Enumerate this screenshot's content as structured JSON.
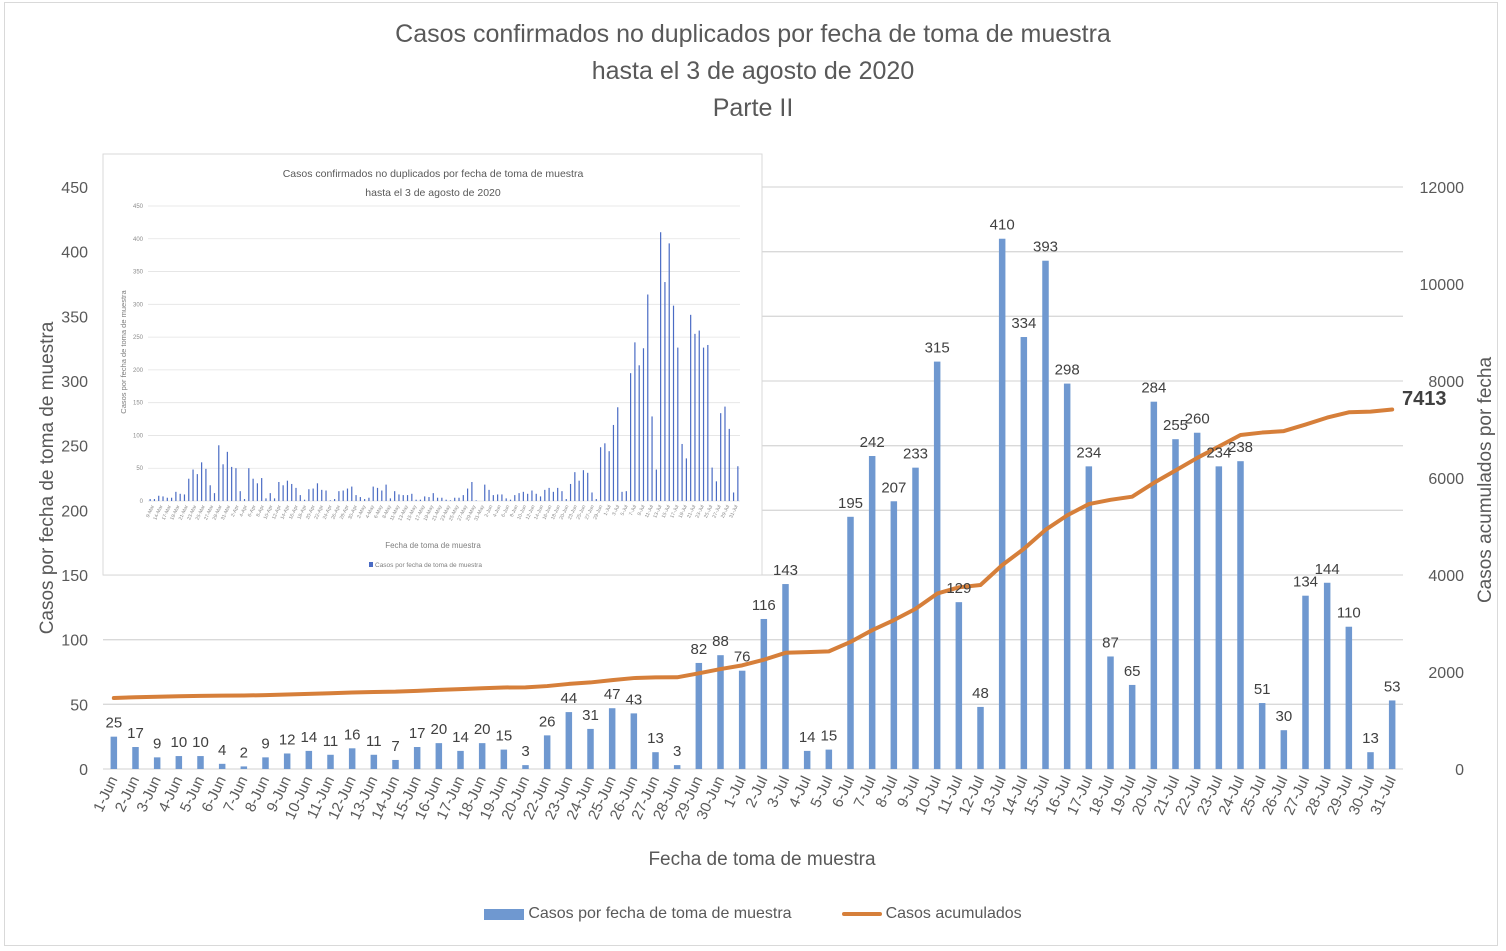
{
  "chart_data": {
    "type": "bar",
    "title": [
      "Casos confirmados no duplicados por fecha de toma de muestra",
      "hasta el 3 de agosto de 2020",
      "Parte II"
    ],
    "xlabel": "Fecha de toma de muestra",
    "ylabel": "Casos por fecha de toma de muestra",
    "y2label": "Casos acumulados por fecha",
    "ylim": [
      0,
      450
    ],
    "yticks": [
      0,
      50,
      100,
      150,
      200,
      250,
      300,
      350,
      400,
      450
    ],
    "y2lim": [
      0,
      12000
    ],
    "y2ticks": [
      0,
      2000,
      4000,
      6000,
      8000,
      10000,
      12000
    ],
    "grid": true,
    "legend_position": "bottom",
    "categories": [
      "1-Jun",
      "2-Jun",
      "3-Jun",
      "4-Jun",
      "5-Jun",
      "6-Jun",
      "7-Jun",
      "8-Jun",
      "9-Jun",
      "10-Jun",
      "11-Jun",
      "12-Jun",
      "13-Jun",
      "14-Jun",
      "15-Jun",
      "16-Jun",
      "17-Jun",
      "18-Jun",
      "19-Jun",
      "20-Jun",
      "22-Jun",
      "23-Jun",
      "24-Jun",
      "25-Jun",
      "26-Jun",
      "27-Jun",
      "28-Jun",
      "29-Jun",
      "30-Jun",
      "1-Jul",
      "2-Jul",
      "3-Jul",
      "4-Jul",
      "5-Jul",
      "6-Jul",
      "7-Jul",
      "8-Jul",
      "9-Jul",
      "10-Jul",
      "11-Jul",
      "12-Jul",
      "13-Jul",
      "14-Jul",
      "15-Jul",
      "16-Jul",
      "17-Jul",
      "18-Jul",
      "19-Jul",
      "20-Jul",
      "21-Jul",
      "22-Jul",
      "23-Jul",
      "24-Jul",
      "25-Jul",
      "26-Jul",
      "27-Jul",
      "28-Jul",
      "29-Jul",
      "30-Jul",
      "31-Jul"
    ],
    "series": [
      {
        "name": "Casos por fecha de toma de muestra",
        "type": "bar",
        "axis": "left",
        "color": "#6f98d0",
        "values": [
          25,
          17,
          9,
          10,
          10,
          4,
          2,
          9,
          12,
          14,
          11,
          16,
          11,
          7,
          17,
          20,
          14,
          20,
          15,
          3,
          26,
          44,
          31,
          47,
          43,
          13,
          3,
          82,
          88,
          76,
          116,
          143,
          14,
          15,
          195,
          242,
          207,
          233,
          315,
          129,
          48,
          410,
          334,
          393,
          298,
          234,
          87,
          65,
          284,
          255,
          260,
          234,
          238,
          51,
          30,
          134,
          144,
          110,
          13,
          53
        ]
      },
      {
        "name": "Casos acumulados",
        "type": "line",
        "axis": "right",
        "color": "#d67f3a",
        "final_value": 7413,
        "values": [
          1463,
          1480,
          1489,
          1499,
          1509,
          1513,
          1515,
          1524,
          1536,
          1550,
          1561,
          1577,
          1588,
          1595,
          1612,
          1632,
          1646,
          1666,
          1681,
          1684,
          1710,
          1754,
          1785,
          1832,
          1875,
          1888,
          1891,
          1973,
          2061,
          2137,
          2253,
          2396,
          2410,
          2425,
          2620,
          2862,
          3069,
          3302,
          3617,
          3746,
          3794,
          4204,
          4538,
          4931,
          5229,
          5463,
          5550,
          5615,
          5899,
          6154,
          6414,
          6648,
          6886,
          6937,
          6967,
          7101,
          7245,
          7355,
          7368,
          7413
        ]
      }
    ],
    "final_label": "7413"
  },
  "inset": {
    "title": [
      "Casos confirmados no duplicados por fecha de toma de muestra",
      "hasta el 3 de agosto de 2020"
    ],
    "xlabel": "Fecha de toma de muestra",
    "ylabel": "Casos por fecha de toma de muestra",
    "legend": "Casos por fecha de toma de muestra",
    "yticks": [
      0,
      50,
      100,
      150,
      200,
      250,
      300,
      350,
      400,
      450
    ],
    "ylim": [
      0,
      450
    ],
    "color": "#4a6bc4",
    "xticklabels": [
      "9-Mar",
      "14-Mar",
      "17-Mar",
      "19-Mar",
      "21-Mar",
      "23-Mar",
      "25-Mar",
      "27-Mar",
      "29-Mar",
      "31-Mar",
      "2-Apr",
      "4-Apr",
      "6-Apr",
      "8-Apr",
      "10-Apr",
      "12-Apr",
      "14-Apr",
      "16-Apr",
      "18-Apr",
      "20-Apr",
      "22-Apr",
      "24-Apr",
      "26-Apr",
      "28-Apr",
      "30-Apr",
      "2-May",
      "4-May",
      "6-May",
      "8-May",
      "11-May",
      "13-May",
      "15-May",
      "17-May",
      "19-May",
      "21-May",
      "23-May",
      "25-May",
      "27-May",
      "29-May",
      "31-May",
      "2-Jun",
      "4-Jun",
      "6-Jun",
      "8-Jun",
      "10-Jun",
      "12-Jun",
      "14-Jun",
      "16-Jun",
      "18-Jun",
      "20-Jun",
      "23-Jun",
      "25-Jun",
      "27-Jun",
      "29-Jun",
      "1-Jul",
      "3-Jul",
      "5-Jul",
      "7-Jul",
      "9-Jul",
      "11-Jul",
      "13-Jul",
      "15-Jul",
      "17-Jul",
      "19-Jul",
      "21-Jul",
      "23-Jul",
      "25-Jul",
      "27-Jul",
      "29-Jul",
      "31-Jul"
    ],
    "values": [
      3,
      3,
      8,
      7,
      5,
      5,
      14,
      11,
      10,
      34,
      48,
      41,
      59,
      49,
      24,
      12,
      85,
      56,
      75,
      52,
      50,
      15,
      3,
      50,
      34,
      27,
      35,
      4,
      12,
      4,
      29,
      24,
      31,
      26,
      20,
      9,
      2,
      18,
      19,
      27,
      17,
      16,
      1,
      3,
      15,
      16,
      19,
      22,
      9,
      6,
      3,
      5,
      22,
      20,
      16,
      25,
      4,
      15,
      10,
      9,
      9,
      11,
      2,
      2,
      7,
      6,
      12,
      5,
      5,
      2,
      1,
      5,
      5,
      9,
      19,
      29,
      1,
      0,
      25,
      17,
      9,
      10,
      10,
      4,
      2,
      9,
      12,
      14,
      11,
      16,
      11,
      7,
      17,
      20,
      14,
      20,
      15,
      3,
      26,
      44,
      31,
      47,
      43,
      13,
      3,
      82,
      88,
      76,
      116,
      143,
      14,
      15,
      195,
      242,
      207,
      233,
      315,
      129,
      48,
      410,
      334,
      393,
      298,
      234,
      87,
      65,
      284,
      255,
      260,
      234,
      238,
      51,
      30,
      134,
      144,
      110,
      13,
      53
    ]
  },
  "legend": {
    "bar_label": "Casos por fecha de toma de muestra",
    "line_label": "Casos acumulados"
  }
}
